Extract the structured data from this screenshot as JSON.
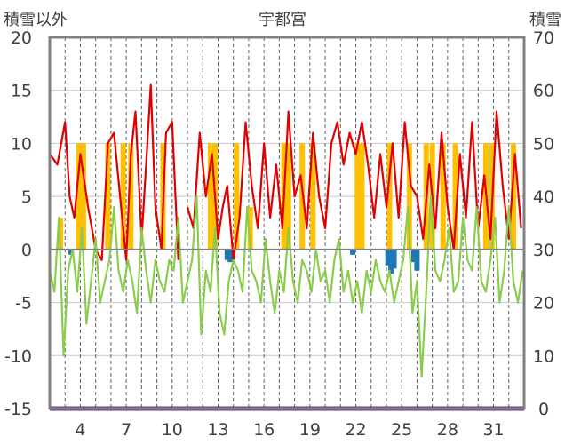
{
  "chart_data": {
    "type": "line",
    "title": "宇都宮",
    "ylabel_left": "積雪以外",
    "ylabel_right": "積雪",
    "ylim_left": [
      -15,
      20
    ],
    "ylim_right": [
      0,
      70
    ],
    "yticks_left": [
      "20",
      "15",
      "10",
      "5",
      "0",
      "-5",
      "-10",
      "-15"
    ],
    "yticks_right": [
      "70",
      "60",
      "50",
      "40",
      "30",
      "20",
      "10",
      "0"
    ],
    "xlim": [
      2,
      33
    ],
    "xticks": [
      {
        "day": 4,
        "label": "4"
      },
      {
        "day": 7,
        "label": "7"
      },
      {
        "day": 10,
        "label": "10"
      },
      {
        "day": 13,
        "label": "13"
      },
      {
        "day": 16,
        "label": "16"
      },
      {
        "day": 19,
        "label": "19"
      },
      {
        "day": 22,
        "label": "22"
      },
      {
        "day": 25,
        "label": "25"
      },
      {
        "day": 28,
        "label": "28"
      },
      {
        "day": 31,
        "label": "31"
      }
    ],
    "colors": {
      "temp_max": "#e00000",
      "temp_min": "#8ccc4c",
      "sunshine": "#ffc000",
      "precip": "#1f77b4",
      "snow": "#7030a0",
      "zero_line": "#808080",
      "frame": "#808080"
    },
    "series": [
      {
        "kind": "line",
        "color_key": "temp_max",
        "x": [
          2.0,
          2.5,
          3.0,
          3.3,
          3.6,
          4.0,
          4.5,
          5.0,
          5.4,
          5.8,
          6.2,
          6.6,
          7.0,
          7.3,
          7.6,
          8.0,
          8.3,
          8.6,
          8.9,
          9.3,
          9.6,
          10.0,
          10.4
        ],
        "y": [
          9,
          8,
          12,
          5,
          3,
          9,
          4,
          0,
          -1,
          10,
          11,
          5,
          -1,
          9,
          13,
          1,
          8,
          15.5,
          4,
          0,
          11,
          12,
          -1
        ],
        "secondary": false
      },
      {
        "kind": "line",
        "color_key": "temp_max",
        "x": [
          11.0,
          11.4,
          11.8,
          12.2,
          12.6,
          13.0,
          13.3,
          13.6,
          14.0,
          14.4,
          14.8,
          15.2,
          15.6,
          16.0,
          16.4,
          16.8,
          17.2,
          17.6,
          18.0,
          18.4,
          18.8,
          19.2,
          19.6,
          20.0,
          20.4,
          20.8,
          21.2,
          21.6,
          22.0,
          22.4,
          22.8,
          23.2,
          23.6,
          24.0,
          24.4,
          24.8,
          25.2,
          25.6,
          26.0,
          26.4,
          26.8,
          27.2,
          27.6,
          28.0,
          28.4,
          28.8,
          29.2,
          29.6,
          30.0,
          30.4,
          30.8,
          31.2,
          31.6,
          32.0,
          32.4,
          32.8
        ],
        "y": [
          4,
          2,
          11,
          5,
          9,
          1,
          4,
          6,
          -1,
          3,
          12,
          6,
          2,
          10,
          3,
          8,
          2,
          13,
          5,
          7,
          2,
          11,
          5,
          2,
          10,
          12,
          8,
          11,
          9,
          12,
          8,
          3,
          9,
          4,
          10,
          3,
          12,
          6,
          5,
          1,
          8,
          2,
          11,
          4,
          0,
          9,
          3,
          12,
          2,
          7,
          1,
          13,
          6,
          1,
          9,
          2
        ],
        "secondary": false
      },
      {
        "kind": "line",
        "color_key": "temp_min",
        "x": [
          2.0,
          2.3,
          2.6,
          2.9,
          3.2,
          3.5,
          3.8,
          4.1,
          4.4,
          4.7,
          5.0,
          5.3,
          5.6,
          5.9,
          6.2,
          6.5,
          6.8,
          7.1,
          7.4,
          7.7,
          8.0,
          8.3,
          8.6,
          8.9,
          9.2,
          9.5,
          9.8,
          10.1,
          10.4,
          10.7,
          11.0,
          11.3,
          11.6,
          11.9,
          12.2,
          12.5,
          12.8,
          13.1,
          13.4,
          13.7,
          14.0,
          14.3,
          14.6,
          14.9,
          15.2,
          15.5,
          15.8,
          16.1,
          16.4,
          16.7,
          17.0,
          17.3,
          17.6,
          17.9,
          18.2,
          18.5,
          18.8,
          19.1,
          19.4,
          19.7,
          20.0,
          20.3,
          20.6,
          20.9,
          21.2,
          21.5,
          21.8,
          22.1,
          22.4,
          22.7,
          23.0,
          23.3,
          23.6,
          23.9,
          24.2,
          24.5,
          24.8,
          25.1,
          25.4,
          25.7,
          26.0,
          26.3,
          26.6,
          26.9,
          27.2,
          27.5,
          27.8,
          28.1,
          28.4,
          28.7,
          29.0,
          29.3,
          29.6,
          29.9,
          30.2,
          30.5,
          30.8,
          31.1,
          31.4,
          31.7,
          32.0,
          32.3,
          32.6,
          32.9
        ],
        "y": [
          -2,
          -4,
          3,
          -10,
          -2,
          0,
          -4,
          2,
          -7,
          -3,
          1,
          -5,
          -3,
          -1,
          4,
          -2,
          -4,
          -1,
          -3,
          -6,
          2,
          -2,
          -5,
          -1,
          -3,
          -4,
          -1,
          -2,
          3,
          -5,
          -3,
          -1,
          5,
          -8,
          -2,
          -4,
          2,
          -6,
          -8,
          -3,
          -1,
          -2,
          -4,
          4,
          -2,
          -3,
          -5,
          1,
          -3,
          -6,
          -2,
          -4,
          2,
          -3,
          -5,
          -1,
          -2,
          -4,
          0,
          -3,
          -2,
          -5,
          -1,
          1,
          -4,
          -2,
          -5,
          -3,
          -6,
          -2,
          -4,
          -1,
          -3,
          -4,
          -2,
          -5,
          -3,
          -1,
          4,
          -6,
          -3,
          -12,
          -4,
          5,
          -2,
          -3,
          -1,
          2,
          -4,
          -3,
          3,
          -1,
          -2,
          4,
          -3,
          -4,
          -1,
          3,
          -5,
          -2,
          4,
          -3,
          -5,
          -2
        ],
        "secondary": false
      },
      {
        "kind": "bar",
        "color_key": "sunshine",
        "x": [
          2.7,
          3.9,
          4.2,
          5.8,
          6.8,
          7.3,
          9.4,
          12.5,
          12.8,
          14.2,
          15.1,
          17.3,
          17.6,
          18.5,
          19.2,
          22.1,
          22.4,
          24.2,
          25.5,
          26.6,
          27.0,
          27.7,
          28.5,
          30.5,
          30.9,
          32.3
        ],
        "y": [
          3,
          10,
          10,
          10,
          10,
          10,
          10,
          10,
          10,
          10,
          4,
          10,
          10,
          10,
          10,
          10,
          10,
          10,
          10,
          10,
          10,
          10,
          10,
          10,
          10,
          10
        ],
        "secondary": false
      },
      {
        "kind": "bar",
        "color_key": "precip",
        "x": [
          3.4,
          13.6,
          13.8,
          21.8,
          24.1,
          24.3,
          24.5,
          25.8,
          26.0
        ],
        "y": [
          -0.5,
          -1,
          -1.2,
          -0.5,
          -1.5,
          -2.3,
          -1.8,
          -1.2,
          -2.0
        ],
        "secondary": false
      },
      {
        "kind": "line",
        "color_key": "snow",
        "x": [
          2,
          33
        ],
        "y": [
          0,
          0
        ],
        "secondary": true
      }
    ]
  }
}
